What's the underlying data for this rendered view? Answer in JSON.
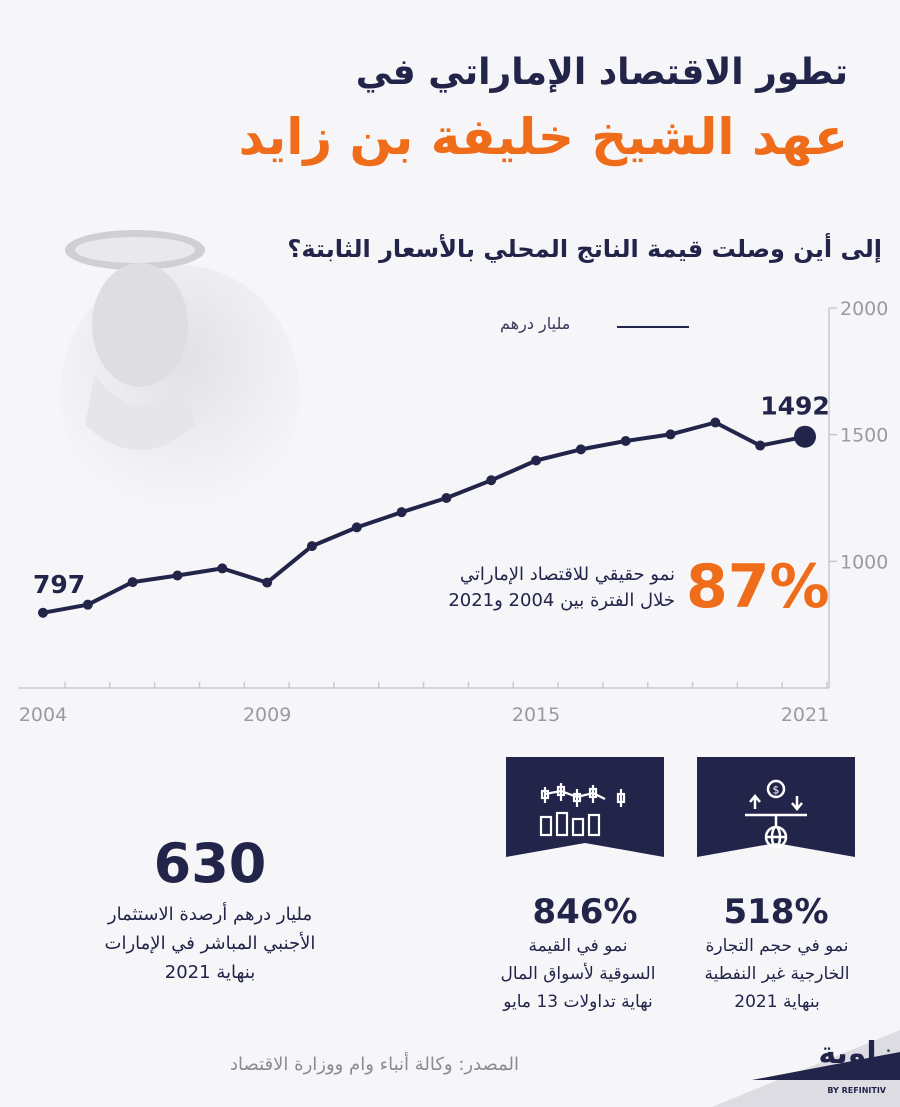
{
  "header": {
    "title_line1": "تطور الاقتصاد الإماراتي في",
    "title_line2": "عهد الشيخ خليفة بن زايد"
  },
  "chart_section": {
    "question": "إلى أين وصلت قيمة الناتج المحلي بالأسعار الثابتة؟",
    "growth_percent": "87%",
    "growth_line1": "نمو حقيقي للاقتصاد الإماراتي",
    "growth_line2": "خلال الفترة بين 2004 و2021"
  },
  "chart_data": {
    "type": "line",
    "series": [
      {
        "name": "مليار درهم",
        "x": [
          2004,
          2005,
          2006,
          2007,
          2008,
          2009,
          2010,
          2011,
          2012,
          2013,
          2014,
          2015,
          2016,
          2017,
          2018,
          2019,
          2020,
          2021
        ],
        "values": [
          797,
          829,
          918,
          944,
          972,
          916,
          1060,
          1134,
          1194,
          1250,
          1320,
          1398,
          1442,
          1475,
          1501,
          1548,
          1457,
          1492
        ]
      }
    ],
    "data_labels": [
      "797",
      "1492"
    ],
    "x_ticks": [
      "2004",
      "2009",
      "2015",
      "2021"
    ],
    "y_ticks": [
      "1000",
      "1500",
      "2000"
    ],
    "xlim": [
      2004,
      2021
    ],
    "ylim": [
      500,
      2000
    ],
    "color": "#22244a",
    "grid": false,
    "legend_position": "top"
  },
  "stats": [
    {
      "value": "518%",
      "line1": "نمو في حجم التجارة",
      "line2": "الخارجية غير النفطية",
      "line3": "بنهاية 2021",
      "icon": "scale-trade-icon"
    },
    {
      "value": "846%",
      "line1": "نمو في القيمة",
      "line2": "السوقية لأسواق المال",
      "line3": "نهاية تداولات 13 مايو",
      "icon": "candlestick-chart-icon"
    },
    {
      "value": "630",
      "line1": "مليار درهم أرصدة الاستثمار",
      "line2": "الأجنبي المباشر في الإمارات",
      "line3": "بنهاية 2021"
    }
  ],
  "footer": {
    "source": "المصدر: وكالة أنباء وام ووزارة الاقتصاد",
    "logo": "زاوية",
    "logo_sub": "BY REFINITIV"
  },
  "colors": {
    "navy": "#22244a",
    "orange": "#ef6c1a",
    "background": "#f6f6f8"
  }
}
